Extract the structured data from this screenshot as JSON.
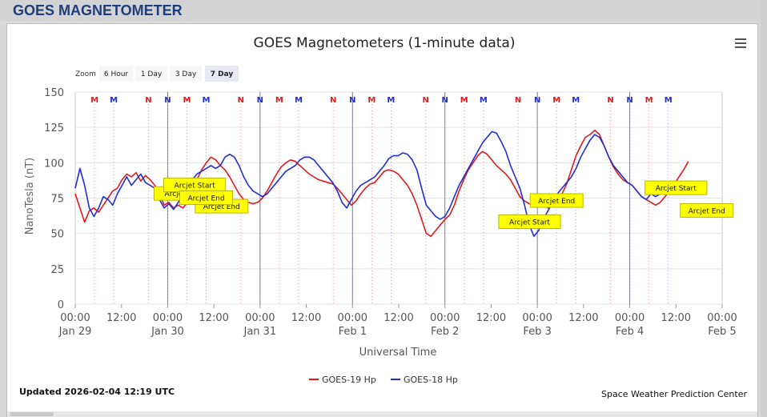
{
  "page": {
    "title": "GOES MAGNETOMETER"
  },
  "chart_data": {
    "type": "line",
    "title": "GOES Magnetometers (1-minute data)",
    "xlabel": "Universal Time",
    "ylabel": "NanoTesla (nT)",
    "ylim": [
      0,
      150
    ],
    "yticks": [
      0,
      25,
      50,
      75,
      100,
      125,
      150
    ],
    "xlim": [
      "2026-01-29 00:00",
      "2026-02-05 00:00"
    ],
    "xticks": [
      {
        "time": "00:00",
        "date": "Jan 29"
      },
      {
        "time": "12:00",
        "date": ""
      },
      {
        "time": "00:00",
        "date": "Jan 30"
      },
      {
        "time": "12:00",
        "date": ""
      },
      {
        "time": "00:00",
        "date": "Jan 31"
      },
      {
        "time": "12:00",
        "date": ""
      },
      {
        "time": "00:00",
        "date": "Feb 1"
      },
      {
        "time": "12:00",
        "date": ""
      },
      {
        "time": "00:00",
        "date": "Feb 2"
      },
      {
        "time": "12:00",
        "date": ""
      },
      {
        "time": "00:00",
        "date": "Feb 3"
      },
      {
        "time": "12:00",
        "date": ""
      },
      {
        "time": "00:00",
        "date": "Feb 4"
      },
      {
        "time": "12:00",
        "date": ""
      },
      {
        "time": "00:00",
        "date": "Feb 5"
      }
    ],
    "grid": true,
    "legend_position": "bottom-center",
    "series": [
      {
        "name": "GOES-19 Hp",
        "color": "#e31a1c",
        "points": [
          [
            0,
            78
          ],
          [
            1,
            68
          ],
          [
            2,
            58
          ],
          [
            3,
            66
          ],
          [
            4,
            68
          ],
          [
            5,
            65
          ],
          [
            6,
            70
          ],
          [
            7,
            75
          ],
          [
            8,
            80
          ],
          [
            9,
            82
          ],
          [
            10,
            88
          ],
          [
            11,
            92
          ],
          [
            12,
            90
          ],
          [
            13,
            93
          ],
          [
            14,
            87
          ],
          [
            15,
            91
          ],
          [
            16,
            88
          ],
          [
            17,
            84
          ],
          [
            18,
            78
          ],
          [
            19,
            70
          ],
          [
            20,
            72
          ],
          [
            21,
            68
          ],
          [
            22,
            70
          ],
          [
            23,
            68
          ],
          [
            24,
            72
          ],
          [
            25,
            80
          ],
          [
            26,
            88
          ],
          [
            27,
            95
          ],
          [
            28,
            100
          ],
          [
            29,
            104
          ],
          [
            30,
            102
          ],
          [
            31,
            98
          ],
          [
            32,
            95
          ],
          [
            33,
            90
          ],
          [
            34,
            84
          ],
          [
            35,
            78
          ],
          [
            36,
            74
          ],
          [
            37,
            72
          ],
          [
            38,
            71
          ],
          [
            39,
            72
          ],
          [
            40,
            75
          ],
          [
            41,
            80
          ],
          [
            42,
            86
          ],
          [
            43,
            92
          ],
          [
            44,
            97
          ],
          [
            45,
            100
          ],
          [
            46,
            102
          ],
          [
            47,
            101
          ],
          [
            48,
            98
          ],
          [
            49,
            95
          ],
          [
            50,
            92
          ],
          [
            51,
            90
          ],
          [
            52,
            88
          ],
          [
            53,
            87
          ],
          [
            54,
            86
          ],
          [
            55,
            85
          ],
          [
            56,
            82
          ],
          [
            57,
            78
          ],
          [
            58,
            74
          ],
          [
            59,
            70
          ],
          [
            60,
            73
          ],
          [
            61,
            78
          ],
          [
            62,
            82
          ],
          [
            63,
            85
          ],
          [
            64,
            86
          ],
          [
            65,
            90
          ],
          [
            66,
            94
          ],
          [
            67,
            95
          ],
          [
            68,
            94
          ],
          [
            69,
            92
          ],
          [
            70,
            88
          ],
          [
            71,
            84
          ],
          [
            72,
            78
          ],
          [
            73,
            70
          ],
          [
            74,
            60
          ],
          [
            75,
            50
          ],
          [
            76,
            48
          ],
          [
            77,
            52
          ],
          [
            78,
            56
          ],
          [
            79,
            60
          ],
          [
            80,
            63
          ],
          [
            81,
            70
          ],
          [
            82,
            80
          ],
          [
            83,
            88
          ],
          [
            84,
            95
          ],
          [
            85,
            100
          ],
          [
            86,
            105
          ],
          [
            87,
            108
          ],
          [
            88,
            106
          ],
          [
            89,
            102
          ],
          [
            90,
            98
          ],
          [
            91,
            95
          ],
          [
            92,
            92
          ],
          [
            93,
            88
          ],
          [
            94,
            82
          ],
          [
            95,
            76
          ],
          [
            96,
            73
          ],
          [
            97,
            71
          ],
          [
            98,
            70
          ],
          [
            99,
            70
          ],
          [
            100,
            70
          ],
          [
            101,
            68
          ],
          [
            102,
            70
          ],
          [
            103,
            72
          ],
          [
            104,
            78
          ],
          [
            105,
            85
          ],
          [
            106,
            95
          ],
          [
            107,
            105
          ],
          [
            108,
            112
          ],
          [
            109,
            118
          ],
          [
            110,
            120
          ],
          [
            111,
            123
          ],
          [
            112,
            120
          ],
          [
            113,
            112
          ],
          [
            114,
            104
          ],
          [
            115,
            97
          ],
          [
            116,
            92
          ],
          [
            117,
            88
          ],
          [
            118,
            86
          ],
          [
            119,
            84
          ],
          [
            120,
            80
          ],
          [
            121,
            76
          ],
          [
            122,
            74
          ],
          [
            123,
            72
          ],
          [
            124,
            70
          ],
          [
            125,
            72
          ],
          [
            126,
            76
          ],
          [
            127,
            80
          ],
          [
            128,
            85
          ],
          [
            129,
            90
          ],
          [
            130,
            95
          ],
          [
            131,
            101
          ]
        ]
      },
      {
        "name": "GOES-18 Hp",
        "color": "#1f2fd6",
        "points": [
          [
            0,
            82
          ],
          [
            1,
            96
          ],
          [
            2,
            84
          ],
          [
            3,
            68
          ],
          [
            4,
            62
          ],
          [
            5,
            68
          ],
          [
            6,
            76
          ],
          [
            7,
            74
          ],
          [
            8,
            70
          ],
          [
            9,
            78
          ],
          [
            10,
            84
          ],
          [
            11,
            90
          ],
          [
            12,
            84
          ],
          [
            13,
            88
          ],
          [
            14,
            92
          ],
          [
            15,
            86
          ],
          [
            16,
            84
          ],
          [
            17,
            82
          ],
          [
            18,
            74
          ],
          [
            19,
            68
          ],
          [
            20,
            71
          ],
          [
            21,
            67
          ],
          [
            22,
            72
          ],
          [
            23,
            78
          ],
          [
            24,
            84
          ],
          [
            25,
            88
          ],
          [
            26,
            92
          ],
          [
            27,
            94
          ],
          [
            28,
            96
          ],
          [
            29,
            98
          ],
          [
            30,
            96
          ],
          [
            31,
            98
          ],
          [
            32,
            104
          ],
          [
            33,
            106
          ],
          [
            34,
            104
          ],
          [
            35,
            98
          ],
          [
            36,
            90
          ],
          [
            37,
            84
          ],
          [
            38,
            80
          ],
          [
            39,
            78
          ],
          [
            40,
            76
          ],
          [
            41,
            78
          ],
          [
            42,
            82
          ],
          [
            43,
            86
          ],
          [
            44,
            90
          ],
          [
            45,
            94
          ],
          [
            46,
            96
          ],
          [
            47,
            98
          ],
          [
            48,
            102
          ],
          [
            49,
            104
          ],
          [
            50,
            104
          ],
          [
            51,
            102
          ],
          [
            52,
            98
          ],
          [
            53,
            94
          ],
          [
            54,
            90
          ],
          [
            55,
            86
          ],
          [
            56,
            80
          ],
          [
            57,
            72
          ],
          [
            58,
            68
          ],
          [
            59,
            74
          ],
          [
            60,
            80
          ],
          [
            61,
            84
          ],
          [
            62,
            86
          ],
          [
            63,
            88
          ],
          [
            64,
            90
          ],
          [
            65,
            94
          ],
          [
            66,
            98
          ],
          [
            67,
            103
          ],
          [
            68,
            105
          ],
          [
            69,
            105
          ],
          [
            70,
            107
          ],
          [
            71,
            106
          ],
          [
            72,
            102
          ],
          [
            73,
            95
          ],
          [
            74,
            82
          ],
          [
            75,
            70
          ],
          [
            76,
            66
          ],
          [
            77,
            62
          ],
          [
            78,
            60
          ],
          [
            79,
            62
          ],
          [
            80,
            68
          ],
          [
            81,
            76
          ],
          [
            82,
            84
          ],
          [
            83,
            90
          ],
          [
            84,
            96
          ],
          [
            85,
            102
          ],
          [
            86,
            108
          ],
          [
            87,
            114
          ],
          [
            88,
            118
          ],
          [
            89,
            122
          ],
          [
            90,
            121
          ],
          [
            91,
            115
          ],
          [
            92,
            108
          ],
          [
            93,
            98
          ],
          [
            94,
            90
          ],
          [
            95,
            82
          ],
          [
            96,
            70
          ],
          [
            97,
            56
          ],
          [
            98,
            48
          ],
          [
            99,
            52
          ],
          [
            100,
            60
          ],
          [
            101,
            66
          ],
          [
            102,
            72
          ],
          [
            103,
            78
          ],
          [
            104,
            82
          ],
          [
            105,
            86
          ],
          [
            106,
            90
          ],
          [
            107,
            96
          ],
          [
            108,
            104
          ],
          [
            109,
            110
          ],
          [
            110,
            116
          ],
          [
            111,
            120
          ],
          [
            112,
            118
          ],
          [
            113,
            112
          ],
          [
            114,
            104
          ],
          [
            115,
            98
          ],
          [
            116,
            94
          ],
          [
            117,
            90
          ],
          [
            118,
            86
          ],
          [
            119,
            84
          ],
          [
            120,
            80
          ],
          [
            121,
            76
          ],
          [
            122,
            74
          ],
          [
            123,
            78
          ],
          [
            124,
            76
          ],
          [
            125,
            78
          ],
          [
            126,
            80
          ],
          [
            127,
            82
          ],
          [
            128,
            80
          ],
          [
            129,
            82
          ],
          [
            130,
            84
          ],
          [
            131,
            78
          ]
        ]
      }
    ],
    "annotations": [
      {
        "label": "Arcjet Start",
        "x_hours": 28.5,
        "y": 78
      },
      {
        "label": "Arcjet Start",
        "x_hours": 31,
        "y": 84
      },
      {
        "label": "Arcjet End",
        "x_hours": 38,
        "y": 69
      },
      {
        "label": "Arcjet End",
        "x_hours": 34,
        "y": 75
      },
      {
        "label": "Arcjet Start",
        "x_hours": 118,
        "y": 58
      },
      {
        "label": "Arcjet End",
        "x_hours": 125,
        "y": 73
      },
      {
        "label": "Arcjet Start",
        "x_hours": 156,
        "y": 82
      },
      {
        "label": "Arcjet End",
        "x_hours": 164,
        "y": 66
      }
    ],
    "top_markers": {
      "groups": [
        {
          "day": 0,
          "labels": [
            [
              "M",
              "#e31a1c"
            ],
            [
              "M",
              "#1f2fd6"
            ],
            [
              "N",
              "#e31a1c"
            ],
            [
              "N",
              "#1f2fd6"
            ]
          ]
        },
        {
          "day": 1,
          "labels": [
            [
              "M",
              "#e31a1c"
            ],
            [
              "M",
              "#1f2fd6"
            ],
            [
              "N",
              "#e31a1c"
            ],
            [
              "N",
              "#1f2fd6"
            ]
          ]
        },
        {
          "day": 2,
          "labels": [
            [
              "M",
              "#e31a1c"
            ],
            [
              "M",
              "#1f2fd6"
            ],
            [
              "N",
              "#e31a1c"
            ],
            [
              "N",
              "#1f2fd6"
            ]
          ]
        },
        {
          "day": 3,
          "labels": [
            [
              "M",
              "#e31a1c"
            ],
            [
              "M",
              "#1f2fd6"
            ],
            [
              "N",
              "#e31a1c"
            ],
            [
              "N",
              "#1f2fd6"
            ]
          ]
        },
        {
          "day": 4,
          "labels": [
            [
              "M",
              "#e31a1c"
            ],
            [
              "M",
              "#1f2fd6"
            ],
            [
              "N",
              "#e31a1c"
            ],
            [
              "N",
              "#1f2fd6"
            ]
          ]
        },
        {
          "day": 5,
          "labels": [
            [
              "M",
              "#e31a1c"
            ],
            [
              "M",
              "#1f2fd6"
            ],
            [
              "N",
              "#e31a1c"
            ],
            [
              "N",
              "#1f2fd6"
            ]
          ]
        },
        {
          "day": 6,
          "labels": [
            [
              "M",
              "#e31a1c"
            ],
            [
              "M",
              "#1f2fd6"
            ]
          ]
        }
      ]
    }
  },
  "zoom": {
    "label": "Zoom",
    "options": [
      "6 Hour",
      "1 Day",
      "3 Day",
      "7 Day"
    ],
    "selected": "7 Day"
  },
  "footer": {
    "updated": "Updated 2026-02-04 12:19 UTC",
    "credit": "Space Weather Prediction Center"
  }
}
